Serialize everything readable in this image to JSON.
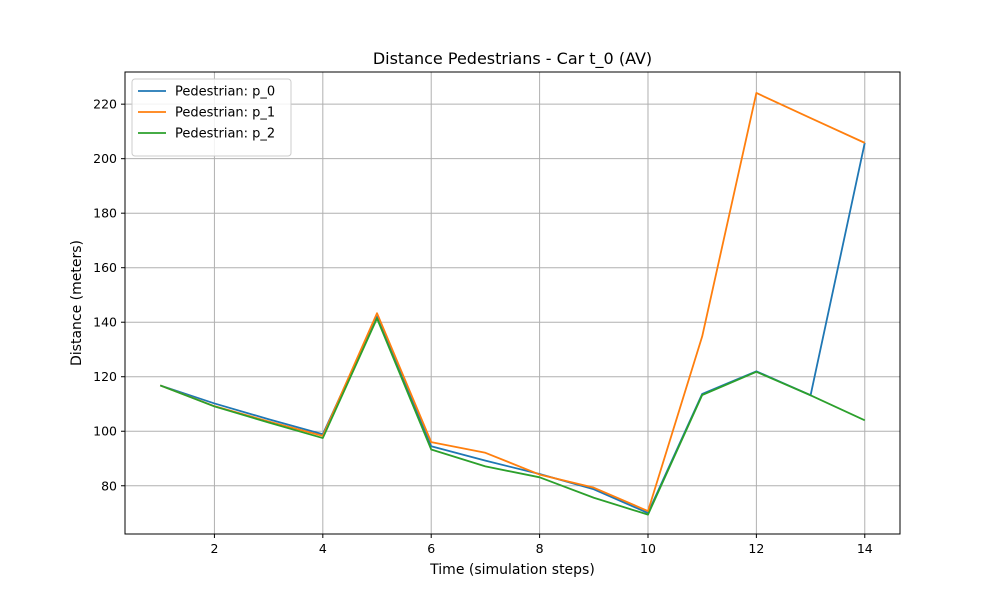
{
  "chart_data": {
    "type": "line",
    "title": "Distance Pedestrians - Car t_0 (AV)",
    "xlabel": "Time (simulation steps)",
    "ylabel": "Distance (meters)",
    "xlim": [
      0.35,
      14.65
    ],
    "ylim": [
      62.3,
      231.8
    ],
    "xticks": [
      2,
      4,
      6,
      8,
      10,
      12,
      14
    ],
    "yticks": [
      80,
      100,
      120,
      140,
      160,
      180,
      200,
      220
    ],
    "grid": true,
    "legend_position": "top-left",
    "x": [
      1,
      2,
      3,
      4,
      5,
      6,
      7,
      8,
      9,
      10,
      11,
      12,
      13,
      14
    ],
    "series": [
      {
        "name": "Pedestrian: p_0",
        "color": "#1f77b4",
        "values": [
          116.8,
          110.2,
          104.4,
          98.9,
          142.0,
          94.5,
          89.2,
          84.3,
          78.7,
          70.0,
          113.7,
          122.0,
          113.2,
          205.8
        ]
      },
      {
        "name": "Pedestrian: p_1",
        "color": "#ff7f0e",
        "values": [
          116.8,
          109.2,
          103.6,
          98.3,
          143.3,
          96.0,
          92.1,
          84.1,
          79.3,
          70.7,
          134.8,
          224.1,
          214.9,
          205.8
        ]
      },
      {
        "name": "Pedestrian: p_2",
        "color": "#2ca02c",
        "values": [
          116.8,
          109.1,
          103.2,
          97.5,
          141.4,
          93.3,
          87.1,
          83.1,
          75.6,
          69.4,
          113.3,
          121.8,
          113.2,
          104.0
        ]
      }
    ]
  }
}
